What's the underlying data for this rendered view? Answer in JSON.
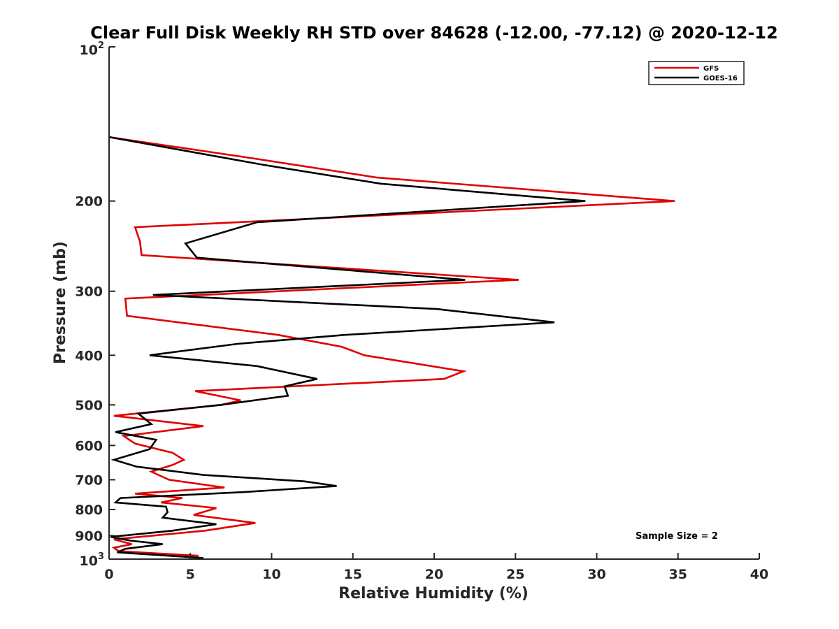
{
  "chart_data": {
    "type": "line",
    "title": "Clear Full Disk Weekly RH STD over 84628 (-12.00, -77.12) @ 2020-12-12",
    "xlabel": "Relative Humidity (%)",
    "ylabel": "Pressure (mb)",
    "xlim": [
      0,
      40
    ],
    "ylim": [
      100,
      1000
    ],
    "yscale": "log",
    "yreversed": true,
    "x_ticks": [
      0,
      5,
      10,
      15,
      20,
      25,
      30,
      35,
      40
    ],
    "x_tick_labels": [
      "0",
      "5",
      "10",
      "15",
      "20",
      "25",
      "30",
      "35",
      "40"
    ],
    "y_ticks": [
      200,
      300,
      400,
      500,
      600,
      700,
      800,
      900
    ],
    "y_tick_labels": [
      "200",
      "300",
      "400",
      "500",
      "600",
      "700",
      "800",
      "900"
    ],
    "y_edge_labels": {
      "top_base": "10",
      "top_exp": "2",
      "bottom_base": "10",
      "bottom_exp": "3"
    },
    "legend": {
      "position": "top-right",
      "entries": [
        "GFS",
        "GOES-16"
      ]
    },
    "annotation": "Sample Size = 2",
    "series": [
      {
        "name": "GFS",
        "color": "#e00000",
        "x": [
          0,
          8.8,
          16.5,
          34.8,
          1.6,
          1.9,
          2.0,
          25.2,
          1.0,
          1.1,
          10.4,
          14.3,
          15.7,
          21.8,
          20.6,
          5.3,
          8.1,
          6.9,
          0.3,
          5.8,
          0.9,
          1.6,
          3.9,
          4.6,
          3.9,
          2.6,
          3.7,
          7.1,
          1.6,
          4.5,
          3.2,
          6.6,
          5.2,
          9.0,
          5.9,
          0.3,
          1.4,
          0.3,
          0.6,
          5.5
        ],
        "y": [
          150,
          165,
          180,
          200,
          225,
          240,
          255,
          285,
          310,
          335,
          365,
          385,
          400,
          430,
          445,
          470,
          490,
          500,
          525,
          550,
          575,
          595,
          620,
          640,
          655,
          675,
          700,
          725,
          745,
          760,
          775,
          795,
          820,
          850,
          880,
          915,
          935,
          950,
          965,
          985
        ]
      },
      {
        "name": "GOES-16",
        "color": "#000000",
        "x": [
          0,
          9.5,
          16.7,
          29.3,
          9.1,
          4.7,
          5.4,
          21.9,
          2.7,
          20.2,
          27.4,
          14.5,
          7.9,
          2.5,
          9.1,
          12.8,
          10.8,
          11.0,
          6.9,
          1.8,
          2.6,
          0.4,
          2.9,
          2.5,
          0.3,
          1.7,
          5.8,
          12.0,
          14.0,
          8.3,
          0.7,
          0.4,
          3.5,
          3.6,
          3.3,
          6.6,
          3.9,
          0.1,
          1.3,
          3.3,
          1.0,
          0.5,
          5.8
        ],
        "y": [
          150,
          170,
          185,
          200,
          220,
          242,
          258,
          285,
          305,
          325,
          345,
          365,
          380,
          400,
          420,
          445,
          460,
          480,
          500,
          520,
          545,
          565,
          585,
          610,
          640,
          660,
          685,
          705,
          720,
          740,
          760,
          775,
          790,
          810,
          830,
          855,
          880,
          905,
          920,
          935,
          955,
          970,
          995
        ]
      }
    ]
  }
}
